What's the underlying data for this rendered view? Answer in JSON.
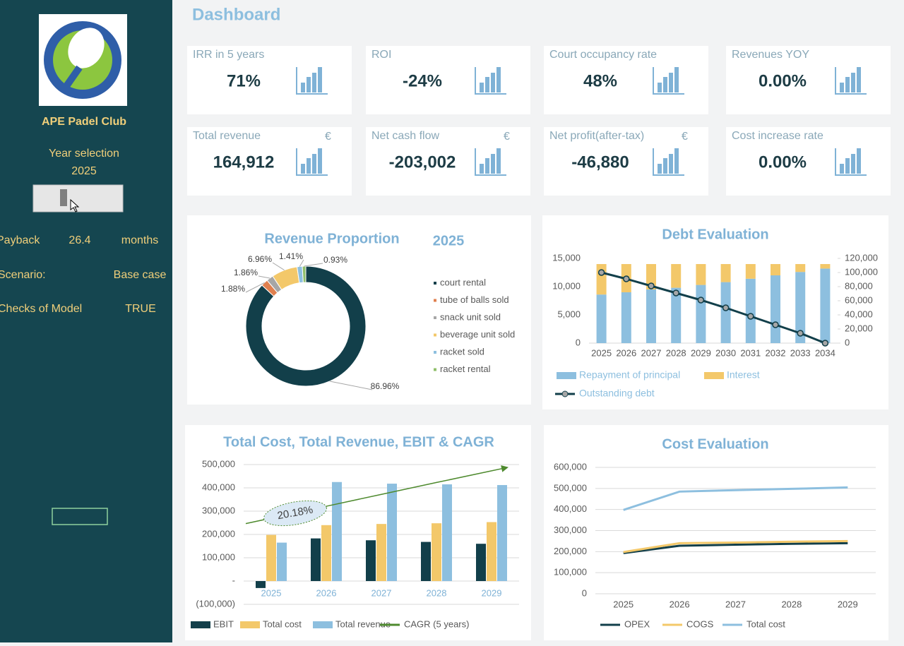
{
  "header": {
    "title": "Dashboard"
  },
  "sidebar": {
    "club_name": "APE Padel Club",
    "year_label": "Year selection",
    "year": "2025",
    "payback_label": "Payback",
    "payback_value": "26.4",
    "payback_unit": "months",
    "scenario_label": "Scenario:",
    "scenario_value": "Base case",
    "checks_label": "Checks of Model",
    "checks_value": "TRUE"
  },
  "kpis": [
    {
      "label": "IRR in 5 years",
      "value": "71%"
    },
    {
      "label": "ROI",
      "value": "-24%"
    },
    {
      "label": "Court occupancy rate",
      "value": "48%"
    },
    {
      "label": "Revenues YOY",
      "value": "0.00%"
    },
    {
      "label": "Total revenue",
      "unit": "€",
      "value": "164,912"
    },
    {
      "label": "Net cash flow",
      "unit": "€",
      "value": "-203,002"
    },
    {
      "label": "Net profit(after-tax)",
      "unit": "€",
      "value": "-46,880"
    },
    {
      "label": "Cost increase rate",
      "value": "0.00%"
    }
  ],
  "chart_data": [
    {
      "type": "pie",
      "title": "Revenue Proportion",
      "subtitle": "2025",
      "categories": [
        "court rental",
        "tube of balls sold",
        "snack unit sold",
        "beverage unit sold",
        "racket sold",
        "racket rental"
      ],
      "values": [
        86.96,
        1.88,
        1.86,
        6.96,
        1.41,
        0.93
      ],
      "value_labels": [
        "86.96%",
        "1.88%",
        "1.86%",
        "6.96%",
        "1.41%",
        "0.93%"
      ],
      "colors": [
        "#123f4a",
        "#e0804f",
        "#a6a6a6",
        "#f3c86a",
        "#8dbfdf",
        "#8fbf6a"
      ]
    },
    {
      "type": "bar",
      "title": "Debt Evaluation",
      "stacked": true,
      "grid": false,
      "categories": [
        "2025",
        "2026",
        "2027",
        "2028",
        "2029",
        "2030",
        "2031",
        "2032",
        "2033",
        "2034"
      ],
      "series": [
        {
          "name": "Repayment of principal",
          "color": "#8dbfdf",
          "values": [
            8600,
            9000,
            9500,
            9800,
            10300,
            10800,
            11400,
            12000,
            12600,
            13200
          ]
        },
        {
          "name": "Interest",
          "color": "#f3c86a",
          "values": [
            5400,
            5000,
            4500,
            4200,
            3700,
            3200,
            2600,
            2000,
            1400,
            800
          ]
        },
        {
          "name": "Outstanding debt",
          "type": "line",
          "axis": "y2",
          "color": "#123f4a",
          "values": [
            100000,
            91000,
            81000,
            71000,
            61000,
            50000,
            38000,
            26000,
            14000,
            0
          ]
        }
      ],
      "ylim": [
        0,
        15000
      ],
      "yticks": [
        0,
        {
          "value": 5000,
          "label": "5,000"
        },
        {
          "value": 10000,
          "label": "10,000"
        },
        {
          "value": 15000,
          "label": "15,000"
        }
      ],
      "y2lim": [
        0,
        120000
      ],
      "y2ticks": [
        0,
        {
          "value": 20000,
          "label": "20,000"
        },
        {
          "value": 40000,
          "label": "40,000"
        },
        {
          "value": 60000,
          "label": "60,000"
        },
        {
          "value": 80000,
          "label": "80,000"
        },
        {
          "value": 100000,
          "label": "100,000"
        },
        {
          "value": 120000,
          "label": "120,000"
        }
      ]
    },
    {
      "type": "bar",
      "title": "Total Cost, Total Revenue, EBIT & CAGR",
      "stacked": false,
      "grid": true,
      "annotation": "20.18%",
      "categories": [
        "2025",
        "2026",
        "2027",
        "2028",
        "2029"
      ],
      "series": [
        {
          "name": "EBIT",
          "color": "#123f4a",
          "values": [
            -30000,
            183000,
            175000,
            168000,
            160000
          ]
        },
        {
          "name": "Total cost",
          "color": "#f3c86a",
          "values": [
            198000,
            240000,
            245000,
            248000,
            253000
          ]
        },
        {
          "name": "Total revenue",
          "color": "#8dbfdf",
          "values": [
            164912,
            425000,
            418000,
            415000,
            412000
          ]
        },
        {
          "name": "CAGR (5 years)",
          "type": "line",
          "color": "#4e8a2e",
          "values": [
            270000,
            321000,
            372000,
            423000,
            473000
          ]
        }
      ],
      "ylim": [
        -100000,
        500000
      ],
      "yticks": [
        {
          "value": -100000,
          "label": "(100,000)"
        },
        {
          "value": 0,
          "label": "-"
        },
        {
          "value": 100000,
          "label": "100,000"
        },
        {
          "value": 200000,
          "label": "200,000"
        },
        {
          "value": 300000,
          "label": "300,000"
        },
        {
          "value": 400000,
          "label": "400,000"
        },
        {
          "value": 500000,
          "label": "500,000"
        }
      ]
    },
    {
      "type": "line",
      "title": "Cost Evaluation",
      "grid": true,
      "categories": [
        "2025",
        "2026",
        "2027",
        "2028",
        "2029"
      ],
      "series": [
        {
          "name": "OPEX",
          "color": "#123f4a",
          "values": [
            193000,
            228000,
            233000,
            237000,
            240000
          ]
        },
        {
          "name": "COGS",
          "color": "#f3c86a",
          "values": [
            198000,
            240000,
            243000,
            247000,
            250000
          ]
        },
        {
          "name": "Total cost",
          "color": "#8dbfdf",
          "values": [
            398000,
            485000,
            492000,
            498000,
            505000
          ]
        }
      ],
      "ylim": [
        0,
        600000
      ],
      "yticks": [
        0,
        {
          "value": 100000,
          "label": "100,000"
        },
        {
          "value": 200000,
          "label": "200,000"
        },
        {
          "value": 300000,
          "label": "300,000"
        },
        {
          "value": 400000,
          "label": "400,000"
        },
        {
          "value": 500000,
          "label": "500,000"
        },
        {
          "value": 600000,
          "label": "600,000"
        }
      ]
    }
  ]
}
